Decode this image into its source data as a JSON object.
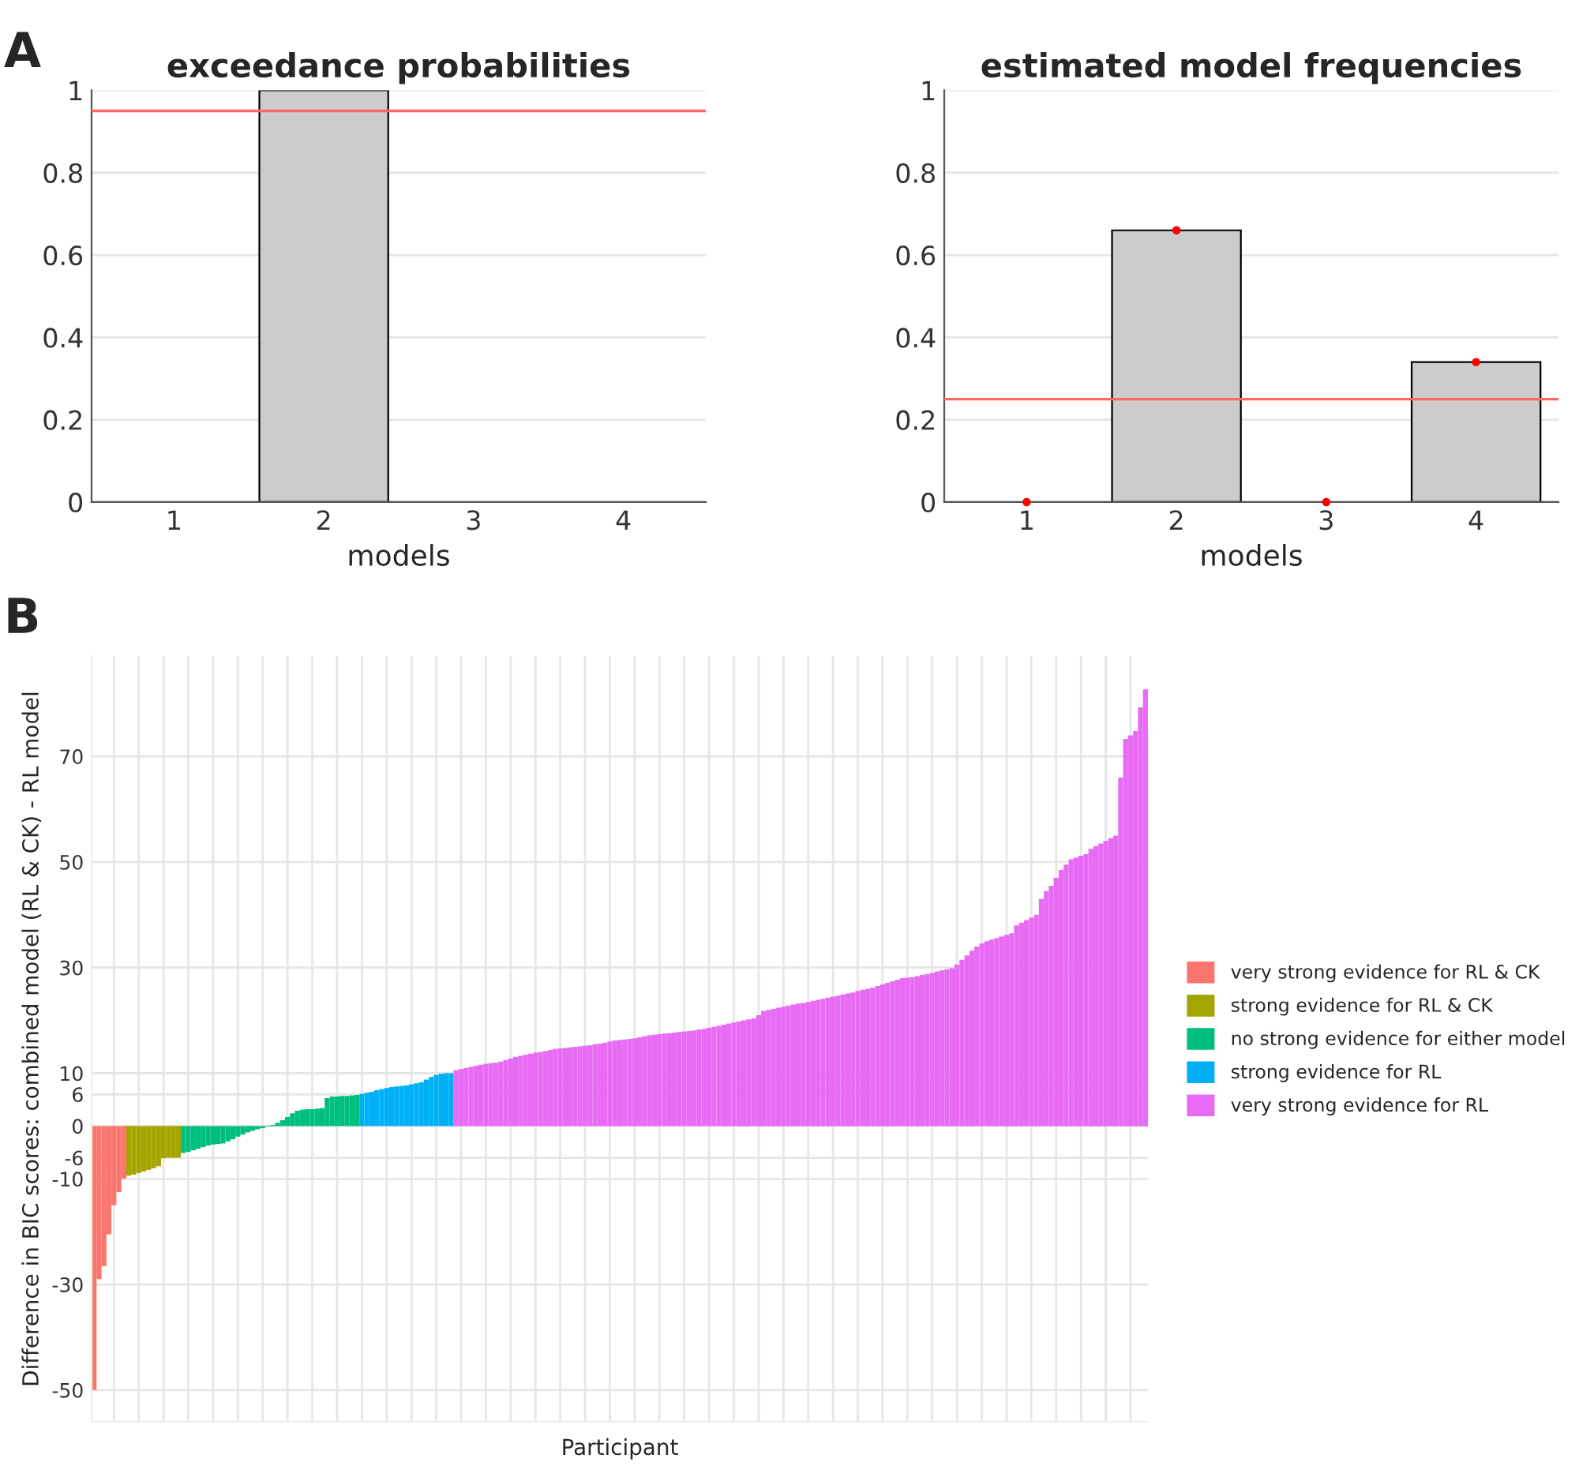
{
  "chart_data": [
    {
      "type": "bar",
      "title": "exceedance probabilities",
      "xlabel": "models",
      "annotations": [
        "A"
      ],
      "categories": [
        "1",
        "2",
        "3",
        "4"
      ],
      "series": [
        {
          "color": "#cccccc",
          "values": [
            0,
            1,
            0,
            0
          ]
        }
      ],
      "ylim": [
        0,
        1
      ],
      "yticks": [
        0,
        0.2,
        0.4,
        0.6,
        0.8,
        1
      ],
      "grid": "y",
      "ref_lines": [
        {
          "axis": "y",
          "value": 0.95,
          "color": "#ff6666"
        }
      ]
    },
    {
      "type": "bar",
      "title": "estimated model frequencies",
      "xlabel": "models",
      "categories": [
        "1",
        "2",
        "3",
        "4"
      ],
      "series": [
        {
          "color": "#cccccc",
          "values": [
            0,
            0.66,
            0,
            0.34
          ]
        },
        {
          "type": "scatter",
          "color": "#ff0000",
          "marker": "circle",
          "x": [
            "1",
            "2",
            "3",
            "4"
          ],
          "values": [
            0,
            0.66,
            0,
            0.34
          ]
        }
      ],
      "ylim": [
        0,
        1
      ],
      "yticks": [
        0,
        0.2,
        0.4,
        0.6,
        0.8,
        1
      ],
      "grid": "y",
      "ref_lines": [
        {
          "axis": "y",
          "value": 0.25,
          "color": "#ff6666"
        }
      ]
    },
    {
      "type": "bar",
      "xlabel": "Participant",
      "ylabel": "Difference in BIC scores: combined model (RL & CK) - RL model",
      "annotations": [
        "B"
      ],
      "categories": [
        null,
        null,
        null,
        null,
        null,
        null,
        null,
        null,
        null,
        null,
        null,
        null,
        null,
        null,
        null,
        null,
        null,
        null,
        null,
        null,
        null,
        null,
        null,
        null,
        null,
        null,
        null,
        null,
        null,
        null,
        null,
        null,
        null,
        null,
        null,
        null,
        null,
        null,
        null,
        null,
        null,
        null,
        null,
        null,
        null,
        null,
        null,
        null,
        null,
        null,
        null,
        null,
        null,
        null,
        null,
        null,
        null,
        null,
        null,
        null,
        null,
        null,
        null,
        null,
        null,
        null,
        null,
        null,
        null,
        null,
        null,
        null,
        null,
        null,
        null,
        null,
        null,
        null,
        null,
        null,
        null,
        null,
        null,
        null,
        null,
        null,
        null,
        null,
        null,
        null,
        null,
        null,
        null,
        null,
        null,
        null,
        null,
        null,
        null,
        null,
        null,
        null,
        null,
        null,
        null,
        null,
        null,
        null,
        null,
        null,
        null,
        null,
        null,
        null,
        null,
        null,
        null,
        null,
        null,
        null,
        null,
        null,
        null,
        null,
        null,
        null,
        null,
        null,
        null,
        null,
        null,
        null,
        null,
        null,
        null,
        null,
        null,
        null,
        null,
        null,
        null,
        null,
        null,
        null,
        null,
        null,
        null,
        null,
        null,
        null,
        null,
        null,
        null,
        null,
        null,
        null,
        null,
        null,
        null,
        null,
        null,
        null,
        null,
        null,
        null,
        null,
        null,
        null,
        null,
        null,
        null,
        null,
        null,
        null,
        null,
        null,
        null,
        null,
        null,
        null,
        null,
        null,
        null,
        null,
        null,
        null,
        null,
        null,
        null,
        null,
        null,
        null,
        null,
        null,
        null,
        null,
        null,
        null,
        null,
        null,
        null,
        null,
        null,
        null,
        null,
        null,
        null,
        null,
        null,
        null,
        null,
        null,
        null
      ],
      "series": [
        {
          "name": "very strong evidence for RL & CK",
          "color": "#f8766d",
          "values": [
            -50,
            -29,
            -26.5,
            -20.5,
            -15,
            -12.5,
            -10,
            null,
            null,
            null,
            null,
            null,
            null,
            null,
            null,
            null,
            null,
            null,
            null,
            null,
            null,
            null,
            null,
            null,
            null,
            null,
            null,
            null,
            null,
            null,
            null,
            null,
            null,
            null,
            null,
            null,
            null,
            null,
            null,
            null,
            null,
            null,
            null,
            null,
            null,
            null,
            null,
            null,
            null,
            null,
            null,
            null,
            null,
            null,
            null,
            null,
            null,
            null,
            null,
            null,
            null,
            null,
            null,
            null,
            null,
            null,
            null,
            null,
            null,
            null,
            null,
            null,
            null,
            null,
            null,
            null,
            null,
            null,
            null,
            null,
            null,
            null,
            null,
            null,
            null,
            null,
            null,
            null,
            null,
            null,
            null,
            null,
            null,
            null,
            null,
            null,
            null,
            null,
            null,
            null,
            null,
            null,
            null,
            null,
            null,
            null,
            null,
            null,
            null,
            null,
            null,
            null,
            null,
            null,
            null,
            null,
            null,
            null,
            null,
            null,
            null,
            null,
            null,
            null,
            null,
            null,
            null,
            null,
            null,
            null,
            null,
            null,
            null,
            null,
            null,
            null,
            null,
            null,
            null,
            null,
            null,
            null,
            null,
            null,
            null,
            null,
            null,
            null,
            null,
            null,
            null,
            null,
            null,
            null,
            null,
            null,
            null,
            null,
            null,
            null,
            null,
            null,
            null,
            null,
            null,
            null,
            null,
            null,
            null,
            null,
            null,
            null,
            null,
            null,
            null,
            null,
            null,
            null,
            null,
            null,
            null,
            null,
            null,
            null,
            null,
            null,
            null,
            null,
            null,
            null,
            null,
            null,
            null,
            null,
            null,
            null,
            null,
            null,
            null,
            null,
            null,
            null,
            null,
            null,
            null,
            null,
            null,
            null,
            null,
            null,
            null,
            null,
            null
          ]
        },
        {
          "name": "strong evidence for RL & CK",
          "color": "#a3a500",
          "values": [
            null,
            null,
            null,
            null,
            null,
            null,
            null,
            -9.4,
            -9.2,
            -8.9,
            -8.6,
            -8.3,
            -8.0,
            -7.6,
            -6.1,
            -6.0,
            -6.0,
            -6.0,
            null,
            null,
            null,
            null,
            null,
            null,
            null,
            null,
            null,
            null,
            null,
            null,
            null,
            null,
            null,
            null,
            null,
            null,
            null,
            null,
            null,
            null,
            null,
            null,
            null,
            null,
            null,
            null,
            null,
            null,
            null,
            null,
            null,
            null,
            null,
            null,
            null,
            null,
            null,
            null,
            null,
            null,
            null,
            null,
            null,
            null,
            null,
            null,
            null,
            null,
            null,
            null,
            null,
            null,
            null,
            null,
            null,
            null,
            null,
            null,
            null,
            null,
            null,
            null,
            null,
            null,
            null,
            null,
            null,
            null,
            null,
            null,
            null,
            null,
            null,
            null,
            null,
            null,
            null,
            null,
            null,
            null,
            null,
            null,
            null,
            null,
            null,
            null,
            null,
            null,
            null,
            null,
            null,
            null,
            null,
            null,
            null,
            null,
            null,
            null,
            null,
            null,
            null,
            null,
            null,
            null,
            null,
            null,
            null,
            null,
            null,
            null,
            null,
            null,
            null,
            null,
            null,
            null,
            null,
            null,
            null,
            null,
            null,
            null,
            null,
            null,
            null,
            null,
            null,
            null,
            null,
            null,
            null,
            null,
            null,
            null,
            null,
            null,
            null,
            null,
            null,
            null,
            null,
            null,
            null,
            null,
            null,
            null,
            null,
            null,
            null,
            null,
            null,
            null,
            null,
            null,
            null,
            null,
            null,
            null,
            null,
            null,
            null,
            null,
            null,
            null,
            null,
            null,
            null,
            null,
            null,
            null,
            null,
            null,
            null,
            null,
            null,
            null,
            null,
            null,
            null,
            null,
            null,
            null,
            null,
            null,
            null,
            null,
            null,
            null,
            null,
            null,
            null,
            null,
            null
          ]
        },
        {
          "name": "no strong evidence for either model",
          "color": "#00bf7d",
          "values": [
            null,
            null,
            null,
            null,
            null,
            null,
            null,
            null,
            null,
            null,
            null,
            null,
            null,
            null,
            null,
            null,
            null,
            null,
            -5.1,
            -4.9,
            -4.6,
            -4.3,
            -4.0,
            -3.7,
            -3.5,
            -3.4,
            -3.3,
            -2.9,
            -2.5,
            -2.0,
            -1.6,
            -1.2,
            -0.9,
            -0.6,
            -0.4,
            -0.1,
            0.2,
            0.6,
            1.1,
            1.7,
            2.4,
            2.9,
            3.1,
            3.2,
            3.2,
            3.3,
            3.4,
            5.3,
            5.6,
            5.6,
            5.7,
            5.7,
            5.8,
            5.9,
            null,
            null,
            null,
            null,
            null,
            null,
            null,
            null,
            null,
            null,
            null,
            null,
            null,
            null,
            null,
            null,
            null,
            null,
            null,
            null,
            null,
            null,
            null,
            null,
            null,
            null,
            null,
            null,
            null,
            null,
            null,
            null,
            null,
            null,
            null,
            null,
            null,
            null,
            null,
            null,
            null,
            null,
            null,
            null,
            null,
            null,
            null,
            null,
            null,
            null,
            null,
            null,
            null,
            null,
            null,
            null,
            null,
            null,
            null,
            null,
            null,
            null,
            null,
            null,
            null,
            null,
            null,
            null,
            null,
            null,
            null,
            null,
            null,
            null,
            null,
            null,
            null,
            null,
            null,
            null,
            null,
            null,
            null,
            null,
            null,
            null,
            null,
            null,
            null,
            null,
            null,
            null,
            null,
            null,
            null,
            null,
            null,
            null,
            null,
            null,
            null,
            null,
            null,
            null,
            null,
            null,
            null,
            null,
            null,
            null,
            null,
            null,
            null,
            null,
            null,
            null,
            null,
            null,
            null,
            null,
            null,
            null,
            null,
            null,
            null,
            null,
            null,
            null,
            null,
            null,
            null,
            null,
            null,
            null,
            null,
            null,
            null,
            null,
            null,
            null,
            null,
            null,
            null,
            null,
            null,
            null,
            null,
            null,
            null,
            null,
            null,
            null,
            null,
            null,
            null,
            null,
            null,
            null,
            null
          ]
        },
        {
          "name": "strong evidence for RL",
          "color": "#00b0f6",
          "values": [
            null,
            null,
            null,
            null,
            null,
            null,
            null,
            null,
            null,
            null,
            null,
            null,
            null,
            null,
            null,
            null,
            null,
            null,
            null,
            null,
            null,
            null,
            null,
            null,
            null,
            null,
            null,
            null,
            null,
            null,
            null,
            null,
            null,
            null,
            null,
            null,
            null,
            null,
            null,
            null,
            null,
            null,
            null,
            null,
            null,
            null,
            null,
            null,
            null,
            null,
            null,
            null,
            null,
            null,
            6.1,
            6.3,
            6.5,
            6.8,
            7.0,
            7.2,
            7.4,
            7.5,
            7.6,
            7.7,
            7.9,
            8.1,
            8.3,
            8.8,
            9.3,
            9.7,
            9.9,
            10.0,
            10.0,
            null,
            null,
            null,
            null,
            null,
            null,
            null,
            null,
            null,
            null,
            null,
            null,
            null,
            null,
            null,
            null,
            null,
            null,
            null,
            null,
            null,
            null,
            null,
            null,
            null,
            null,
            null,
            null,
            null,
            null,
            null,
            null,
            null,
            null,
            null,
            null,
            null,
            null,
            null,
            null,
            null,
            null,
            null,
            null,
            null,
            null,
            null,
            null,
            null,
            null,
            null,
            null,
            null,
            null,
            null,
            null,
            null,
            null,
            null,
            null,
            null,
            null,
            null,
            null,
            null,
            null,
            null,
            null,
            null,
            null,
            null,
            null,
            null,
            null,
            null,
            null,
            null,
            null,
            null,
            null,
            null,
            null,
            null,
            null,
            null,
            null,
            null,
            null,
            null,
            null,
            null,
            null,
            null,
            null,
            null,
            null,
            null,
            null,
            null,
            null,
            null,
            null,
            null,
            null,
            null,
            null,
            null,
            null,
            null,
            null,
            null,
            null,
            null,
            null,
            null,
            null,
            null,
            null,
            null,
            null,
            null,
            null,
            null,
            null,
            null,
            null,
            null,
            null,
            null,
            null,
            null,
            null,
            null,
            null,
            null,
            null,
            null,
            null,
            null,
            null
          ]
        },
        {
          "name": "very strong evidence for RL",
          "color": "#e76bf3",
          "values": [
            null,
            null,
            null,
            null,
            null,
            null,
            null,
            null,
            null,
            null,
            null,
            null,
            null,
            null,
            null,
            null,
            null,
            null,
            null,
            null,
            null,
            null,
            null,
            null,
            null,
            null,
            null,
            null,
            null,
            null,
            null,
            null,
            null,
            null,
            null,
            null,
            null,
            null,
            null,
            null,
            null,
            null,
            null,
            null,
            null,
            null,
            null,
            null,
            null,
            null,
            null,
            null,
            null,
            null,
            null,
            null,
            null,
            null,
            null,
            null,
            null,
            null,
            null,
            null,
            null,
            null,
            null,
            null,
            null,
            null,
            null,
            null,
            null,
            10.6,
            10.8,
            11.0,
            11.2,
            11.4,
            11.6,
            11.8,
            11.9,
            12.0,
            12.2,
            12.5,
            12.8,
            13.1,
            13.3,
            13.5,
            13.7,
            13.9,
            14.0,
            14.2,
            14.4,
            14.6,
            14.7,
            14.8,
            14.9,
            15.0,
            15.1,
            15.2,
            15.3,
            15.5,
            15.6,
            15.8,
            16.0,
            16.2,
            16.3,
            16.4,
            16.5,
            16.6,
            16.8,
            17.0,
            17.2,
            17.3,
            17.4,
            17.5,
            17.6,
            17.7,
            17.8,
            17.9,
            18.0,
            18.1,
            18.3,
            18.4,
            18.6,
            18.8,
            19.0,
            19.2,
            19.4,
            19.6,
            19.8,
            20.0,
            20.2,
            20.4,
            21.0,
            21.8,
            22.0,
            22.2,
            22.4,
            22.6,
            22.8,
            23.0,
            23.2,
            23.3,
            23.5,
            23.7,
            23.9,
            24.1,
            24.3,
            24.5,
            24.7,
            24.9,
            25.1,
            25.3,
            25.6,
            25.8,
            26.0,
            26.2,
            26.5,
            26.8,
            27.1,
            27.4,
            27.7,
            28.0,
            28.1,
            28.2,
            28.4,
            28.6,
            28.8,
            29.0,
            29.3,
            29.5,
            29.7,
            29.9,
            30.6,
            31.5,
            32.3,
            33.2,
            34.0,
            34.6,
            35.0,
            35.3,
            35.6,
            35.9,
            36.2,
            36.5,
            38.0,
            38.5,
            39.0,
            39.5,
            40.0,
            43.0,
            44.5,
            45.5,
            47.0,
            48.5,
            49.5,
            50.5,
            50.8,
            51.2,
            51.5,
            52.5,
            53.0,
            53.5,
            54.0,
            54.5,
            55.0,
            66.0,
            73.3,
            74.0,
            74.8,
            79.3,
            82.7
          ]
        }
      ],
      "ylim": [
        -56,
        89
      ],
      "yticks": [
        -50,
        -30,
        -10,
        -6,
        0,
        6,
        10,
        30,
        50,
        70
      ],
      "grid": true,
      "legend": "right"
    }
  ]
}
